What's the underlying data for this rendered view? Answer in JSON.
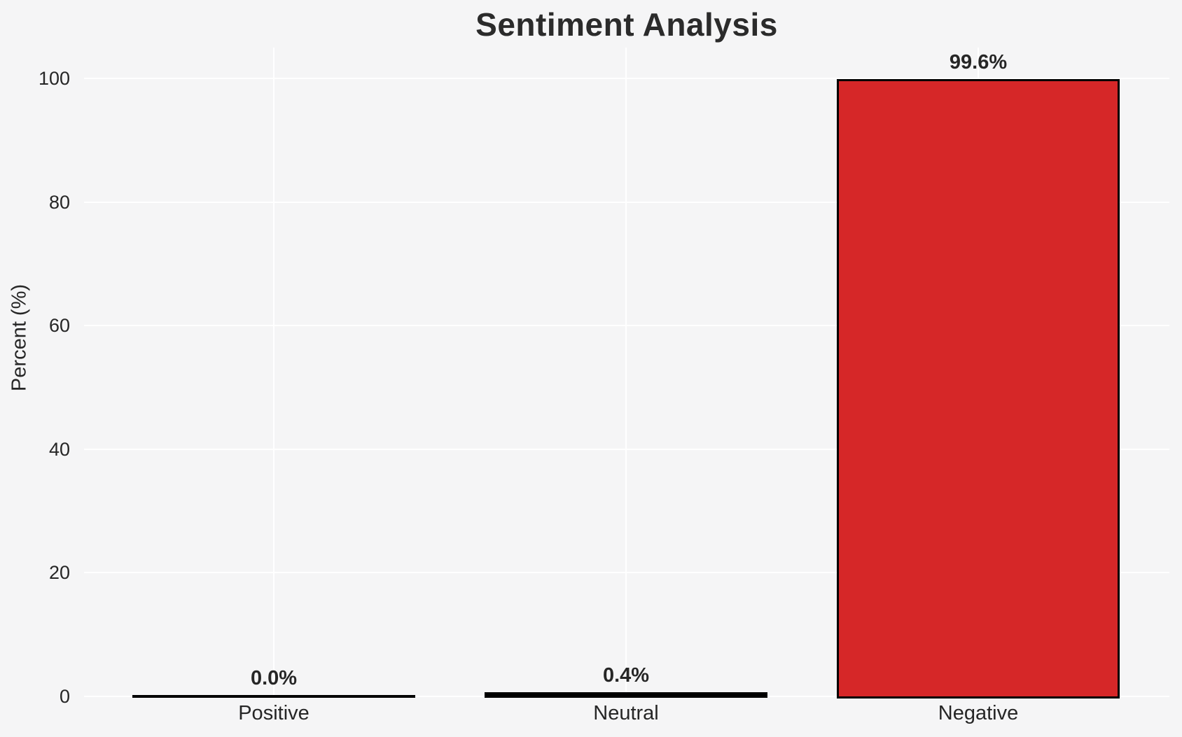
{
  "chart_data": {
    "type": "bar",
    "title": "Sentiment Analysis",
    "xlabel": "",
    "ylabel": "Percent (%)",
    "categories": [
      "Positive",
      "Neutral",
      "Negative"
    ],
    "values": [
      0.0,
      0.4,
      99.6
    ],
    "value_labels": [
      "0.0%",
      "0.4%",
      "99.6%"
    ],
    "ylim": [
      0,
      105
    ],
    "yticks": [
      0,
      20,
      40,
      60,
      80,
      100
    ],
    "grid": true,
    "legend": "none",
    "bar_colors": [
      "#000000",
      "#000000",
      "#d62728"
    ],
    "bar_edge_color": "#000000",
    "colors": {
      "background": "#f5f5f6",
      "gridline": "#ffffff",
      "text": "#262626",
      "negative_bar": "#d62728"
    }
  }
}
